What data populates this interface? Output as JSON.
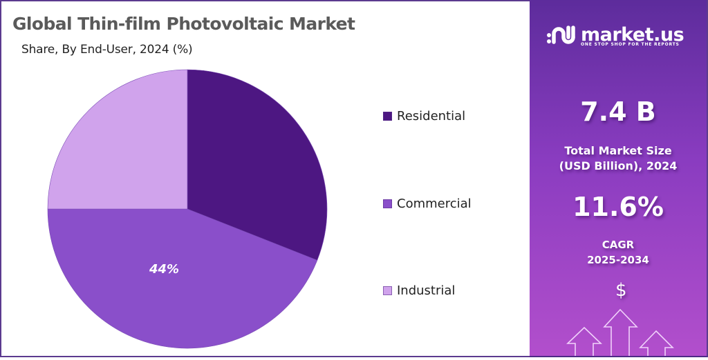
{
  "header": {
    "title": "Global Thin-film Photovoltaic Market",
    "subtitle": "Share, By End-User, 2024 (%)"
  },
  "legend": {
    "items": [
      {
        "label": "Residential",
        "color": "#4d1782"
      },
      {
        "label": "Commercial",
        "color": "#8a4fca"
      },
      {
        "label": "Industrial",
        "color": "#d0a3ec"
      }
    ]
  },
  "pie_label": "44%",
  "sidebar": {
    "brand": "market.us",
    "tagline": "ONE STOP SHOP FOR THE REPORTS",
    "market_size_value": "7.4 B",
    "market_size_label_line1": "Total Market Size",
    "market_size_label_line2": "(USD Billion), 2024",
    "cagr_value": "11.6%",
    "cagr_label_line1": "CAGR",
    "cagr_label_line2": "2025-2034",
    "dollar_icon": "$"
  },
  "colors": {
    "residential": "#4d1782",
    "commercial": "#8a4fca",
    "industrial": "#d0a3ec",
    "sidebar_top": "#5d2c9c",
    "sidebar_bottom": "#b24fcc",
    "border": "#5b3a8f"
  },
  "chart_data": {
    "type": "pie",
    "title": "Global Thin-film Photovoltaic Market",
    "subtitle": "Share, By End-User, 2024 (%)",
    "categories": [
      "Residential",
      "Commercial",
      "Industrial"
    ],
    "values": [
      31,
      44,
      25
    ],
    "unit": "%",
    "labeled_values": {
      "Commercial": "44%"
    },
    "start_angle": "12 o'clock",
    "direction": "clockwise",
    "legend_position": "right",
    "colors": [
      "#4d1782",
      "#8a4fca",
      "#d0a3ec"
    ]
  }
}
